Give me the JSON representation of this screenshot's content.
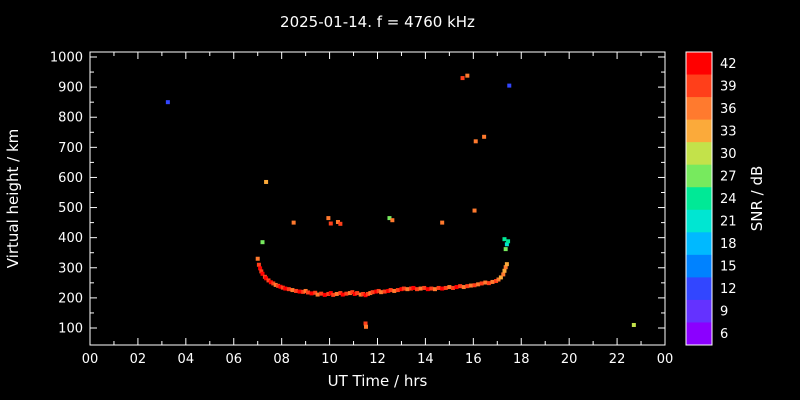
{
  "title": "2025-01-14. f = 4760 kHz",
  "chart_data": {
    "type": "scatter",
    "title": "2025-01-14. f = 4760 kHz",
    "xlabel": "UT Time / hrs",
    "ylabel": "Virtual height / km",
    "xlim": [
      0,
      24
    ],
    "ylim": [
      50,
      1020
    ],
    "grid": false,
    "background": "#000000",
    "axis_color": "#ffffff",
    "x_ticks": [
      "00",
      "02",
      "04",
      "06",
      "08",
      "10",
      "12",
      "14",
      "16",
      "18",
      "20",
      "22",
      "00"
    ],
    "y_ticks": [
      1000,
      900,
      800,
      700,
      600,
      500,
      400,
      300,
      200,
      100
    ],
    "colorbar": {
      "label": "SNR / dB",
      "position": "right",
      "ticks": [
        42,
        39,
        36,
        33,
        30,
        27,
        24,
        21,
        18,
        15,
        12,
        9,
        6
      ],
      "colors": [
        "#ff0000",
        "#ff3f1a",
        "#ff7a2e",
        "#fbaa3a",
        "#c3e24a",
        "#77ea5e",
        "#00e996",
        "#00e6d2",
        "#00b9ff",
        "#0082ff",
        "#3246ff",
        "#6432ff",
        "#8b00ff"
      ]
    },
    "points": [
      [
        3.25,
        850,
        12
      ],
      [
        15.55,
        930,
        39
      ],
      [
        15.75,
        938,
        36
      ],
      [
        17.5,
        905,
        12
      ],
      [
        16.1,
        720,
        36
      ],
      [
        16.45,
        735,
        36
      ],
      [
        7.35,
        585,
        33
      ],
      [
        7.2,
        385,
        27
      ],
      [
        8.5,
        450,
        36
      ],
      [
        9.95,
        465,
        36
      ],
      [
        10.05,
        447,
        39
      ],
      [
        10.35,
        452,
        36
      ],
      [
        10.45,
        446,
        39
      ],
      [
        12.5,
        465,
        27
      ],
      [
        12.62,
        458,
        36
      ],
      [
        14.7,
        450,
        36
      ],
      [
        16.05,
        490,
        36
      ],
      [
        17.3,
        395,
        24
      ],
      [
        17.4,
        378,
        21
      ],
      [
        17.45,
        388,
        24
      ],
      [
        17.35,
        362,
        27
      ],
      [
        11.5,
        115,
        39
      ],
      [
        11.52,
        104,
        36
      ],
      [
        22.7,
        110,
        30
      ],
      [
        7.0,
        330,
        36
      ],
      [
        7.05,
        310,
        39
      ],
      [
        7.1,
        298,
        42
      ],
      [
        7.15,
        288,
        39
      ],
      [
        7.2,
        280,
        42
      ],
      [
        7.3,
        270,
        39
      ],
      [
        7.35,
        265,
        42
      ],
      [
        7.45,
        258,
        39
      ],
      [
        7.55,
        252,
        42
      ],
      [
        7.65,
        248,
        39
      ],
      [
        7.75,
        243,
        36
      ],
      [
        7.85,
        240,
        39
      ],
      [
        7.95,
        237,
        42
      ],
      [
        8.05,
        234,
        39
      ],
      [
        8.15,
        231,
        42
      ],
      [
        8.3,
        229,
        39
      ],
      [
        8.45,
        226,
        36
      ],
      [
        8.6,
        223,
        39
      ],
      [
        8.75,
        221,
        42
      ],
      [
        8.9,
        220,
        39
      ],
      [
        9.0,
        223,
        36
      ],
      [
        9.1,
        218,
        39
      ],
      [
        9.25,
        215,
        42
      ],
      [
        9.4,
        217,
        39
      ],
      [
        9.5,
        211,
        36
      ],
      [
        9.65,
        214,
        39
      ],
      [
        9.8,
        210,
        42
      ],
      [
        9.95,
        213,
        39
      ],
      [
        10.05,
        216,
        42
      ],
      [
        10.15,
        210,
        39
      ],
      [
        10.3,
        213,
        36
      ],
      [
        10.45,
        216,
        39
      ],
      [
        10.55,
        211,
        42
      ],
      [
        10.7,
        214,
        39
      ],
      [
        10.85,
        216,
        36
      ],
      [
        10.95,
        219,
        39
      ],
      [
        11.05,
        213,
        42
      ],
      [
        11.15,
        216,
        39
      ],
      [
        11.3,
        211,
        36
      ],
      [
        11.4,
        213,
        39
      ],
      [
        11.5,
        209,
        42
      ],
      [
        11.6,
        213,
        39
      ],
      [
        11.7,
        216,
        36
      ],
      [
        11.8,
        219,
        39
      ],
      [
        11.95,
        221,
        42
      ],
      [
        12.05,
        223,
        39
      ],
      [
        12.15,
        219,
        36
      ],
      [
        12.3,
        221,
        39
      ],
      [
        12.45,
        223,
        42
      ],
      [
        12.55,
        226,
        39
      ],
      [
        12.7,
        223,
        36
      ],
      [
        12.85,
        226,
        39
      ],
      [
        13.0,
        229,
        42
      ],
      [
        13.1,
        231,
        39
      ],
      [
        13.25,
        229,
        36
      ],
      [
        13.4,
        231,
        39
      ],
      [
        13.5,
        233,
        42
      ],
      [
        13.65,
        229,
        39
      ],
      [
        13.8,
        231,
        36
      ],
      [
        13.95,
        233,
        39
      ],
      [
        14.1,
        229,
        42
      ],
      [
        14.25,
        231,
        39
      ],
      [
        14.4,
        229,
        36
      ],
      [
        14.55,
        233,
        39
      ],
      [
        14.7,
        231,
        42
      ],
      [
        14.85,
        233,
        39
      ],
      [
        15.0,
        236,
        36
      ],
      [
        15.15,
        233,
        39
      ],
      [
        15.3,
        236,
        42
      ],
      [
        15.45,
        239,
        39
      ],
      [
        15.6,
        236,
        36
      ],
      [
        15.75,
        239,
        39
      ],
      [
        15.9,
        241,
        36
      ],
      [
        16.05,
        242,
        39
      ],
      [
        16.2,
        245,
        36
      ],
      [
        16.35,
        248,
        39
      ],
      [
        16.5,
        251,
        36
      ],
      [
        16.65,
        249,
        39
      ],
      [
        16.8,
        253,
        36
      ],
      [
        16.95,
        256,
        39
      ],
      [
        17.05,
        261,
        36
      ],
      [
        17.15,
        268,
        33
      ],
      [
        17.25,
        278,
        36
      ],
      [
        17.3,
        290,
        33
      ],
      [
        17.35,
        302,
        36
      ],
      [
        17.4,
        312,
        33
      ]
    ]
  }
}
